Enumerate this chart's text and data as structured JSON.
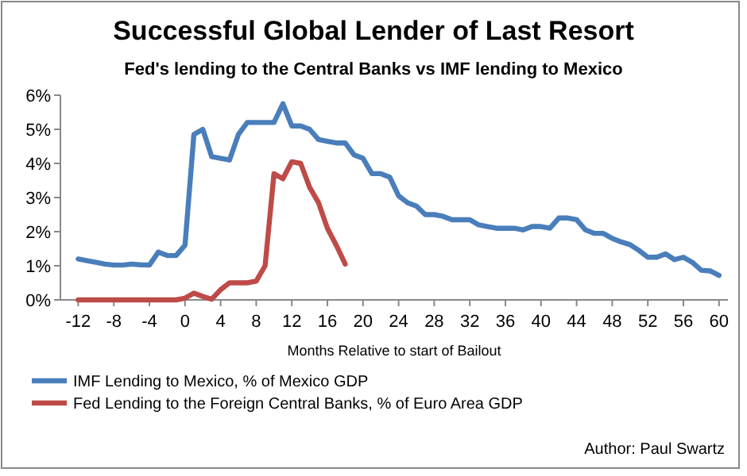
{
  "chart_data": {
    "type": "line",
    "title": "Successful Global  Lender of Last Resort",
    "subtitle": "Fed's lending to the Central Banks vs IMF lending to Mexico",
    "xlabel": "Months Relative to start of Bailout",
    "x": [
      -12,
      -11,
      -10,
      -9,
      -8,
      -7,
      -6,
      -5,
      -4,
      -3,
      -2,
      -1,
      0,
      1,
      2,
      3,
      4,
      5,
      6,
      7,
      8,
      9,
      10,
      11,
      12,
      13,
      14,
      15,
      16,
      17,
      18,
      19,
      20,
      21,
      22,
      23,
      24,
      25,
      26,
      27,
      28,
      29,
      30,
      31,
      32,
      33,
      34,
      35,
      36,
      37,
      38,
      39,
      40,
      41,
      42,
      43,
      44,
      45,
      46,
      47,
      48,
      49,
      50,
      51,
      52,
      53,
      54,
      55,
      56,
      57,
      58,
      59,
      60
    ],
    "series": [
      {
        "name": "IMF Lending to Mexico, % of Mexico GDP",
        "color": "#4a7ebb",
        "values": [
          1.2,
          1.15,
          1.1,
          1.05,
          1.02,
          1.02,
          1.05,
          1.03,
          1.02,
          1.4,
          1.3,
          1.3,
          1.6,
          4.85,
          5.0,
          4.2,
          4.15,
          4.1,
          4.85,
          5.2,
          5.2,
          5.2,
          5.2,
          5.75,
          5.1,
          5.1,
          5.0,
          4.7,
          4.65,
          4.6,
          4.6,
          4.25,
          4.15,
          3.7,
          3.7,
          3.6,
          3.05,
          2.85,
          2.75,
          2.5,
          2.5,
          2.45,
          2.35,
          2.35,
          2.35,
          2.2,
          2.15,
          2.1,
          2.1,
          2.1,
          2.05,
          2.15,
          2.15,
          2.1,
          2.4,
          2.4,
          2.35,
          2.05,
          1.95,
          1.95,
          1.8,
          1.7,
          1.62,
          1.45,
          1.25,
          1.25,
          1.35,
          1.18,
          1.25,
          1.1,
          0.87,
          0.85,
          0.72
        ]
      },
      {
        "name": "Fed Lending to the Foreign Central Banks,  % of Euro Area GDP",
        "color": "#be4b48",
        "values": [
          0,
          0,
          0,
          0,
          0,
          0,
          0,
          0,
          0,
          0,
          0,
          0,
          0.05,
          0.2,
          0.1,
          0.02,
          0.3,
          0.5,
          0.5,
          0.5,
          0.55,
          1.0,
          3.7,
          3.55,
          4.05,
          4.0,
          3.3,
          2.85,
          2.1,
          1.6,
          1.05,
          null,
          null,
          null,
          null,
          null,
          null,
          null,
          null,
          null,
          null,
          null,
          null,
          null,
          null,
          null,
          null,
          null,
          null,
          null,
          null,
          null,
          null,
          null,
          null,
          null,
          null,
          null,
          null,
          null,
          null,
          null,
          null,
          null,
          null,
          null,
          null,
          null,
          null,
          null,
          null,
          null,
          null
        ]
      }
    ],
    "xlim": [
      -14,
      61
    ],
    "xticks": [
      -12,
      -8,
      -4,
      0,
      4,
      8,
      12,
      16,
      20,
      24,
      28,
      32,
      36,
      40,
      44,
      48,
      52,
      56,
      60
    ],
    "ylim": [
      0,
      6
    ],
    "yticks": [
      {
        "value": 0,
        "label": "0%"
      },
      {
        "value": 1,
        "label": "1%"
      },
      {
        "value": 2,
        "label": "2%"
      },
      {
        "value": 3,
        "label": "3%"
      },
      {
        "value": 4,
        "label": "4%"
      },
      {
        "value": 5,
        "label": "5%"
      },
      {
        "value": 6,
        "label": "6%"
      }
    ],
    "grid": false,
    "legend": "bottom",
    "marker": "none",
    "line_style": "solid",
    "annotations": [
      "Author: Paul Swartz"
    ]
  }
}
